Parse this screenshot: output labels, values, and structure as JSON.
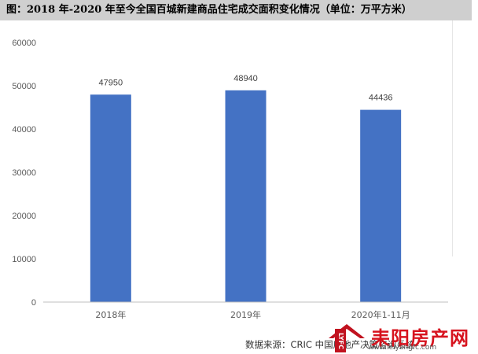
{
  "title": "图：2018 年-2020 年至今全国百城新建商品住宅成交面积变化情况（单位：万平方米）",
  "source": "数据来源：CRIC 中国房地产决策咨询系统",
  "watermark": {
    "tag": "LYFC",
    "name": "耒阳房产网",
    "url": "www.leiyangfc.com"
  },
  "colors": {
    "bar": "#4472c4",
    "title_bg": "#cfcfcf",
    "watermark": "#d7131e"
  },
  "chart_data": {
    "type": "bar",
    "categories": [
      "2018年",
      "2019年",
      "2020年1-11月"
    ],
    "values": [
      47950,
      48940,
      44436
    ],
    "title": "",
    "xlabel": "",
    "ylabel": "",
    "ylim": [
      0,
      60000
    ],
    "yticks": [
      "0",
      "10000",
      "20000",
      "30000",
      "40000",
      "50000",
      "60000"
    ],
    "grid": false,
    "legend": "none"
  }
}
